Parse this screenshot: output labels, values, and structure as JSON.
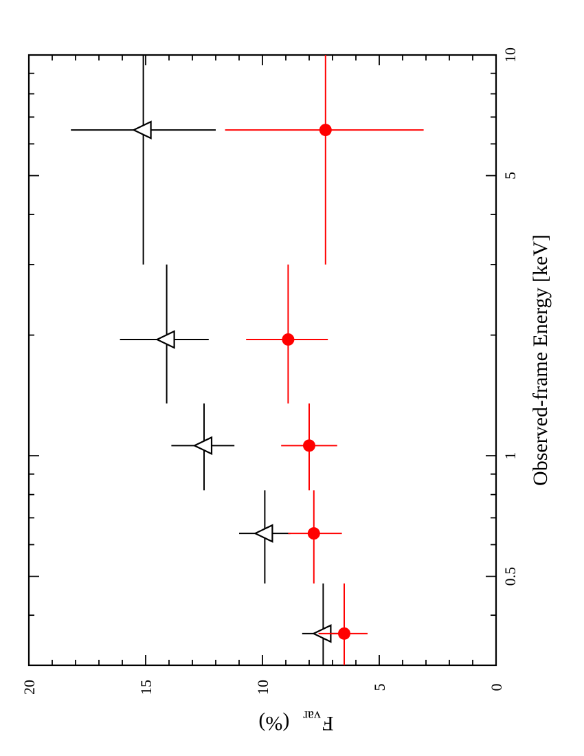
{
  "chart_data": {
    "type": "scatter",
    "xlabel": "Observed-frame Energy [keV]",
    "ylabel": "F",
    "ylabel_sub": "var",
    "ylabel_unit": "(%)",
    "x_scale": "log",
    "xlim": [
      0.3,
      10
    ],
    "ylim": [
      0,
      20
    ],
    "x_major_ticks": [
      {
        "value": 0.5,
        "label": "0.5"
      },
      {
        "value": 1,
        "label": "1"
      },
      {
        "value": 5,
        "label": "5"
      },
      {
        "value": 10,
        "label": "10"
      }
    ],
    "x_minor_ticks": [
      0.3,
      0.4,
      0.6,
      0.7,
      0.8,
      0.9,
      2,
      3,
      4,
      6,
      7,
      8,
      9
    ],
    "y_major_ticks": [
      {
        "value": 0,
        "label": "0"
      },
      {
        "value": 5,
        "label": "5"
      },
      {
        "value": 10,
        "label": "10"
      },
      {
        "value": 15,
        "label": "15"
      },
      {
        "value": 20,
        "label": "20"
      }
    ],
    "y_minor_step": 1,
    "series": [
      {
        "marker": "open-triangle",
        "color": "#000000",
        "points": [
          {
            "x": 0.36,
            "x_lo": 0.3,
            "x_hi": 0.48,
            "y": 7.4,
            "y_lo": 6.5,
            "y_hi": 8.3
          },
          {
            "x": 0.64,
            "x_lo": 0.48,
            "x_hi": 0.82,
            "y": 9.9,
            "y_lo": 8.8,
            "y_hi": 11.0
          },
          {
            "x": 1.06,
            "x_lo": 0.82,
            "x_hi": 1.35,
            "y": 12.5,
            "y_lo": 11.2,
            "y_hi": 13.9
          },
          {
            "x": 1.95,
            "x_lo": 1.35,
            "x_hi": 3.0,
            "y": 14.1,
            "y_lo": 12.3,
            "y_hi": 16.1
          },
          {
            "x": 6.5,
            "x_lo": 3.0,
            "x_hi": 10.0,
            "y": 15.1,
            "y_lo": 12.0,
            "y_hi": 18.2
          }
        ]
      },
      {
        "marker": "filled-circle",
        "color": "#ff0000",
        "points": [
          {
            "x": 0.36,
            "x_lo": 0.3,
            "x_hi": 0.48,
            "y": 6.5,
            "y_lo": 5.5,
            "y_hi": 7.6
          },
          {
            "x": 0.64,
            "x_lo": 0.48,
            "x_hi": 0.82,
            "y": 7.8,
            "y_lo": 6.6,
            "y_hi": 8.9
          },
          {
            "x": 1.06,
            "x_lo": 0.82,
            "x_hi": 1.35,
            "y": 8.0,
            "y_lo": 6.8,
            "y_hi": 9.2
          },
          {
            "x": 1.95,
            "x_lo": 1.35,
            "x_hi": 3.0,
            "y": 8.9,
            "y_lo": 7.2,
            "y_hi": 10.7
          },
          {
            "x": 6.5,
            "x_lo": 3.0,
            "x_hi": 10.0,
            "y": 7.3,
            "y_lo": 3.1,
            "y_hi": 11.6
          }
        ]
      }
    ]
  }
}
